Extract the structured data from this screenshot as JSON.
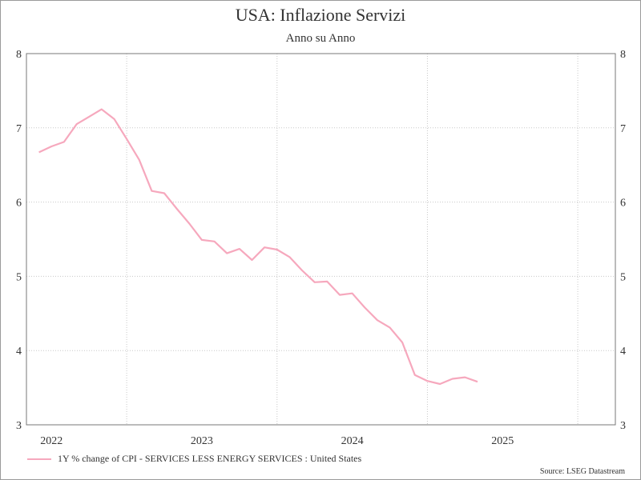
{
  "chart_data": {
    "type": "line",
    "title": "USA: Inflazione Servizi",
    "subtitle": "Anno su Anno",
    "xlabel": "",
    "ylabel": "",
    "ylim": [
      3,
      8
    ],
    "yticks": [
      "3",
      "4",
      "5",
      "6",
      "7",
      "8"
    ],
    "xlim": [
      "2021-11",
      "2025-10"
    ],
    "xticks": [
      {
        "label": "2022",
        "date": "2022-01"
      },
      {
        "label": "2023",
        "date": "2023-01"
      },
      {
        "label": "2024",
        "date": "2024-01"
      },
      {
        "label": "2025",
        "date": "2025-01"
      }
    ],
    "grid": true,
    "legend_position": "bottom-left",
    "series": [
      {
        "name": "1Y % change of CPI - SERVICES LESS ENERGY SERVICES : United States",
        "color": "#f6a8bd",
        "points": [
          {
            "x": "2021-12",
            "y": 6.67
          },
          {
            "x": "2022-01",
            "y": 6.75
          },
          {
            "x": "2022-02",
            "y": 6.81
          },
          {
            "x": "2022-03",
            "y": 7.05
          },
          {
            "x": "2022-04",
            "y": 7.15
          },
          {
            "x": "2022-05",
            "y": 7.25
          },
          {
            "x": "2022-06",
            "y": 7.12
          },
          {
            "x": "2022-07",
            "y": 6.85
          },
          {
            "x": "2022-08",
            "y": 6.57
          },
          {
            "x": "2022-09",
            "y": 6.15
          },
          {
            "x": "2022-10",
            "y": 6.12
          },
          {
            "x": "2022-11",
            "y": 5.91
          },
          {
            "x": "2022-12",
            "y": 5.71
          },
          {
            "x": "2023-01",
            "y": 5.49
          },
          {
            "x": "2023-02",
            "y": 5.47
          },
          {
            "x": "2023-03",
            "y": 5.31
          },
          {
            "x": "2023-04",
            "y": 5.37
          },
          {
            "x": "2023-05",
            "y": 5.22
          },
          {
            "x": "2023-06",
            "y": 5.39
          },
          {
            "x": "2023-07",
            "y": 5.36
          },
          {
            "x": "2023-08",
            "y": 5.26
          },
          {
            "x": "2023-09",
            "y": 5.08
          },
          {
            "x": "2023-10",
            "y": 4.92
          },
          {
            "x": "2023-11",
            "y": 4.93
          },
          {
            "x": "2023-12",
            "y": 4.75
          },
          {
            "x": "2024-01",
            "y": 4.77
          },
          {
            "x": "2024-02",
            "y": 4.58
          },
          {
            "x": "2024-03",
            "y": 4.41
          },
          {
            "x": "2024-04",
            "y": 4.31
          },
          {
            "x": "2024-05",
            "y": 4.11
          },
          {
            "x": "2024-06",
            "y": 3.67
          },
          {
            "x": "2024-07",
            "y": 3.59
          },
          {
            "x": "2024-08",
            "y": 3.55
          },
          {
            "x": "2024-09",
            "y": 3.62
          },
          {
            "x": "2024-10",
            "y": 3.64
          },
          {
            "x": "2024-11",
            "y": 3.58
          }
        ]
      }
    ]
  },
  "source": "Source: LSEG Datastream",
  "colors": {
    "grid": "#c8c8c8",
    "axis": "#777777",
    "text": "#333333"
  }
}
